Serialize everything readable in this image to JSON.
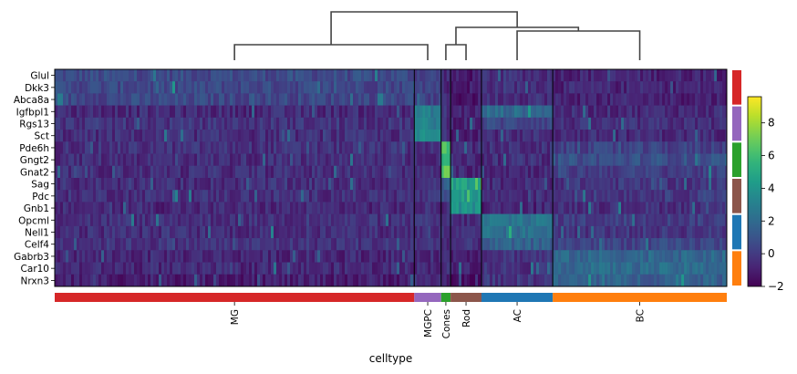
{
  "chart_data": {
    "type": "heatmap",
    "title": "",
    "xlabel": "celltype",
    "ylabel": "",
    "genes": [
      "Glul",
      "Dkk3",
      "Abca8a",
      "Igfbpl1",
      "Rgs13",
      "Sct",
      "Pde6h",
      "Gngt2",
      "Gnat2",
      "Sag",
      "Pdc",
      "Gnb1",
      "Opcml",
      "Nell1",
      "Celf4",
      "Gabrb3",
      "Car10",
      "Nrxn3"
    ],
    "groups": [
      {
        "name": "MG",
        "color": "#d62728",
        "cell_fraction": 0.535
      },
      {
        "name": "MGPC",
        "color": "#9467bd",
        "cell_fraction": 0.04
      },
      {
        "name": "Cones",
        "color": "#2ca02c",
        "cell_fraction": 0.014
      },
      {
        "name": "Rod",
        "color": "#8c564b",
        "cell_fraction": 0.046
      },
      {
        "name": "AC",
        "color": "#1f77b4",
        "cell_fraction": 0.106
      },
      {
        "name": "BC",
        "color": "#ff7f0e",
        "cell_fraction": 0.259
      }
    ],
    "gene_group_colors": [
      "#d62728",
      "#9467bd",
      "#2ca02c",
      "#8c564b",
      "#1f77b4",
      "#ff7f0e"
    ],
    "mean_expression": [
      [
        0.6,
        0.3,
        -0.5,
        -1.2,
        -0.4,
        -0.8
      ],
      [
        0.5,
        0.4,
        -0.6,
        -1.1,
        -0.3,
        -0.8
      ],
      [
        0.5,
        0.2,
        -0.5,
        -1.3,
        -0.4,
        -0.9
      ],
      [
        -0.6,
        2.8,
        -0.4,
        -0.8,
        2.0,
        -0.6
      ],
      [
        -0.3,
        3.0,
        -0.5,
        -0.8,
        0.5,
        -0.5
      ],
      [
        -0.5,
        3.5,
        -0.6,
        -0.8,
        -0.5,
        -0.6
      ],
      [
        -0.4,
        -0.4,
        6.0,
        -0.6,
        -0.5,
        0.2
      ],
      [
        -0.5,
        -0.5,
        5.5,
        -0.6,
        -0.5,
        0.8
      ],
      [
        -0.5,
        -0.5,
        6.5,
        -0.7,
        -0.6,
        0.1
      ],
      [
        -0.5,
        -0.5,
        1.5,
        4.5,
        -0.6,
        -0.2
      ],
      [
        -0.4,
        -0.4,
        0.8,
        4.2,
        -0.5,
        -0.1
      ],
      [
        -0.7,
        -0.6,
        -0.5,
        3.8,
        -0.8,
        -0.4
      ],
      [
        -0.4,
        -0.4,
        -0.5,
        -0.6,
        2.5,
        0.1
      ],
      [
        -0.5,
        -0.5,
        -0.5,
        -0.6,
        2.2,
        -0.2
      ],
      [
        -0.3,
        -0.3,
        -0.4,
        -0.5,
        1.5,
        0.4
      ],
      [
        -0.7,
        -0.6,
        -0.6,
        -0.8,
        -0.2,
        1.8
      ],
      [
        -0.7,
        -0.6,
        -0.6,
        -0.8,
        -0.3,
        2.0
      ],
      [
        -1.0,
        -0.6,
        -0.8,
        -1.8,
        -0.2,
        1.5
      ]
    ],
    "colorbar": {
      "colormap": "viridis",
      "range": [
        -2,
        9.6
      ],
      "ticks": [
        "8",
        "6",
        "4",
        "2",
        "0",
        "−2"
      ]
    },
    "dendrogram": {
      "merges": [
        {
          "left": "MG",
          "right": "MGPC"
        },
        {
          "left": "Cones",
          "right": "Rod"
        },
        {
          "left": "AC",
          "right": "BC"
        },
        {
          "left": "Cones+Rod",
          "right": "AC+BC"
        },
        {
          "left": "MG+MGPC",
          "right": "Cones+Rod+AC+BC"
        }
      ]
    }
  }
}
